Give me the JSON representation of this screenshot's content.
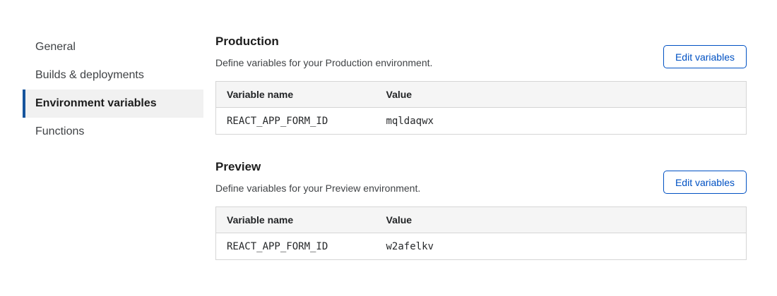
{
  "sidebar": {
    "items": [
      {
        "label": "General",
        "active": false
      },
      {
        "label": "Builds & deployments",
        "active": false
      },
      {
        "label": "Environment variables",
        "active": true
      },
      {
        "label": "Functions",
        "active": false
      }
    ]
  },
  "sections": [
    {
      "title": "Production",
      "description": "Define variables for your Production environment.",
      "button_label": "Edit variables",
      "table": {
        "columns": [
          "Variable name",
          "Value"
        ],
        "rows": [
          {
            "name": "REACT_APP_FORM_ID",
            "value": "mqldaqwx"
          }
        ]
      }
    },
    {
      "title": "Preview",
      "description": "Define variables for your Preview environment.",
      "button_label": "Edit variables",
      "table": {
        "columns": [
          "Variable name",
          "Value"
        ],
        "rows": [
          {
            "name": "REACT_APP_FORM_ID",
            "value": "w2afelkv"
          }
        ]
      }
    }
  ],
  "colors": {
    "accent_blue": "#0051c3",
    "active_marker_blue": "#16549c",
    "active_item_bg": "#f1f1f1",
    "table_header_bg": "#f5f5f5",
    "table_border": "#d5d5d5",
    "heading_text": "#1d1d1d",
    "body_text": "#3f4245"
  }
}
